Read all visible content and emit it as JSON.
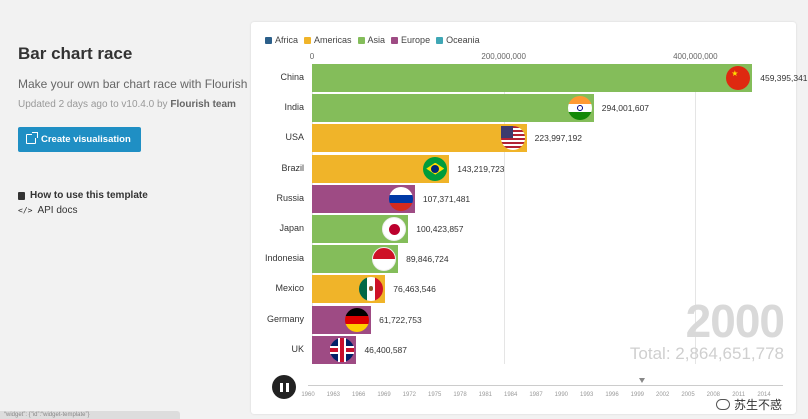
{
  "sidebar": {
    "title": "Bar chart race",
    "description": "Make your own bar chart race with Flourish",
    "updated_prefix": "Updated 2 days ago to v10.4.0 by",
    "updated_author": "Flourish team",
    "create_button": "Create visualisation",
    "how_to": "How to use this template",
    "api_docs": "API docs"
  },
  "status_bar": "“widget”: {\"id”:“widget-template”}",
  "legend": [
    {
      "label": "Africa",
      "color": "#2c5f8a"
    },
    {
      "label": "Americas",
      "color": "#f0b429"
    },
    {
      "label": "Asia",
      "color": "#84bd5a"
    },
    {
      "label": "Europe",
      "color": "#9e4b84"
    },
    {
      "label": "Oceania",
      "color": "#3fa7b5"
    }
  ],
  "chart_data": {
    "type": "bar",
    "x_ticks": [
      "0",
      "200,000,000",
      "400,000,000"
    ],
    "xlim": [
      0,
      480000000
    ],
    "year": "2000",
    "total_label": "Total: 2,864,651,778",
    "categories": [
      "China",
      "India",
      "USA",
      "Brazil",
      "Russia",
      "Japan",
      "Indonesia",
      "Mexico",
      "Germany",
      "UK"
    ],
    "values": [
      459395341,
      294001607,
      223997192,
      143219723,
      107371481,
      100423857,
      89846724,
      76463546,
      61722753,
      46400587
    ],
    "value_labels": [
      "459,395,341",
      "294,001,607",
      "223,997,192",
      "143,219,723",
      "107,371,481",
      "100,423,857",
      "89,846,724",
      "76,463,546",
      "61,722,753",
      "46,400,587"
    ],
    "regions": [
      "Asia",
      "Asia",
      "Americas",
      "Americas",
      "Europe",
      "Asia",
      "Asia",
      "Americas",
      "Europe",
      "Europe"
    ],
    "flags": [
      "china-flag",
      "india-flag",
      "usa-flag",
      "brazil-flag",
      "russia-flag",
      "japan-flag",
      "indonesia-flag",
      "mexico-flag",
      "germany-flag",
      "uk-flag"
    ]
  },
  "timeline": {
    "ticks": [
      "1960",
      "1963",
      "1966",
      "1969",
      "1972",
      "1975",
      "1978",
      "1981",
      "1984",
      "1987",
      "1990",
      "1993",
      "1996",
      "1999",
      "2002",
      "2005",
      "2008",
      "2011",
      "2014"
    ]
  },
  "watermark": "苏生不惑"
}
